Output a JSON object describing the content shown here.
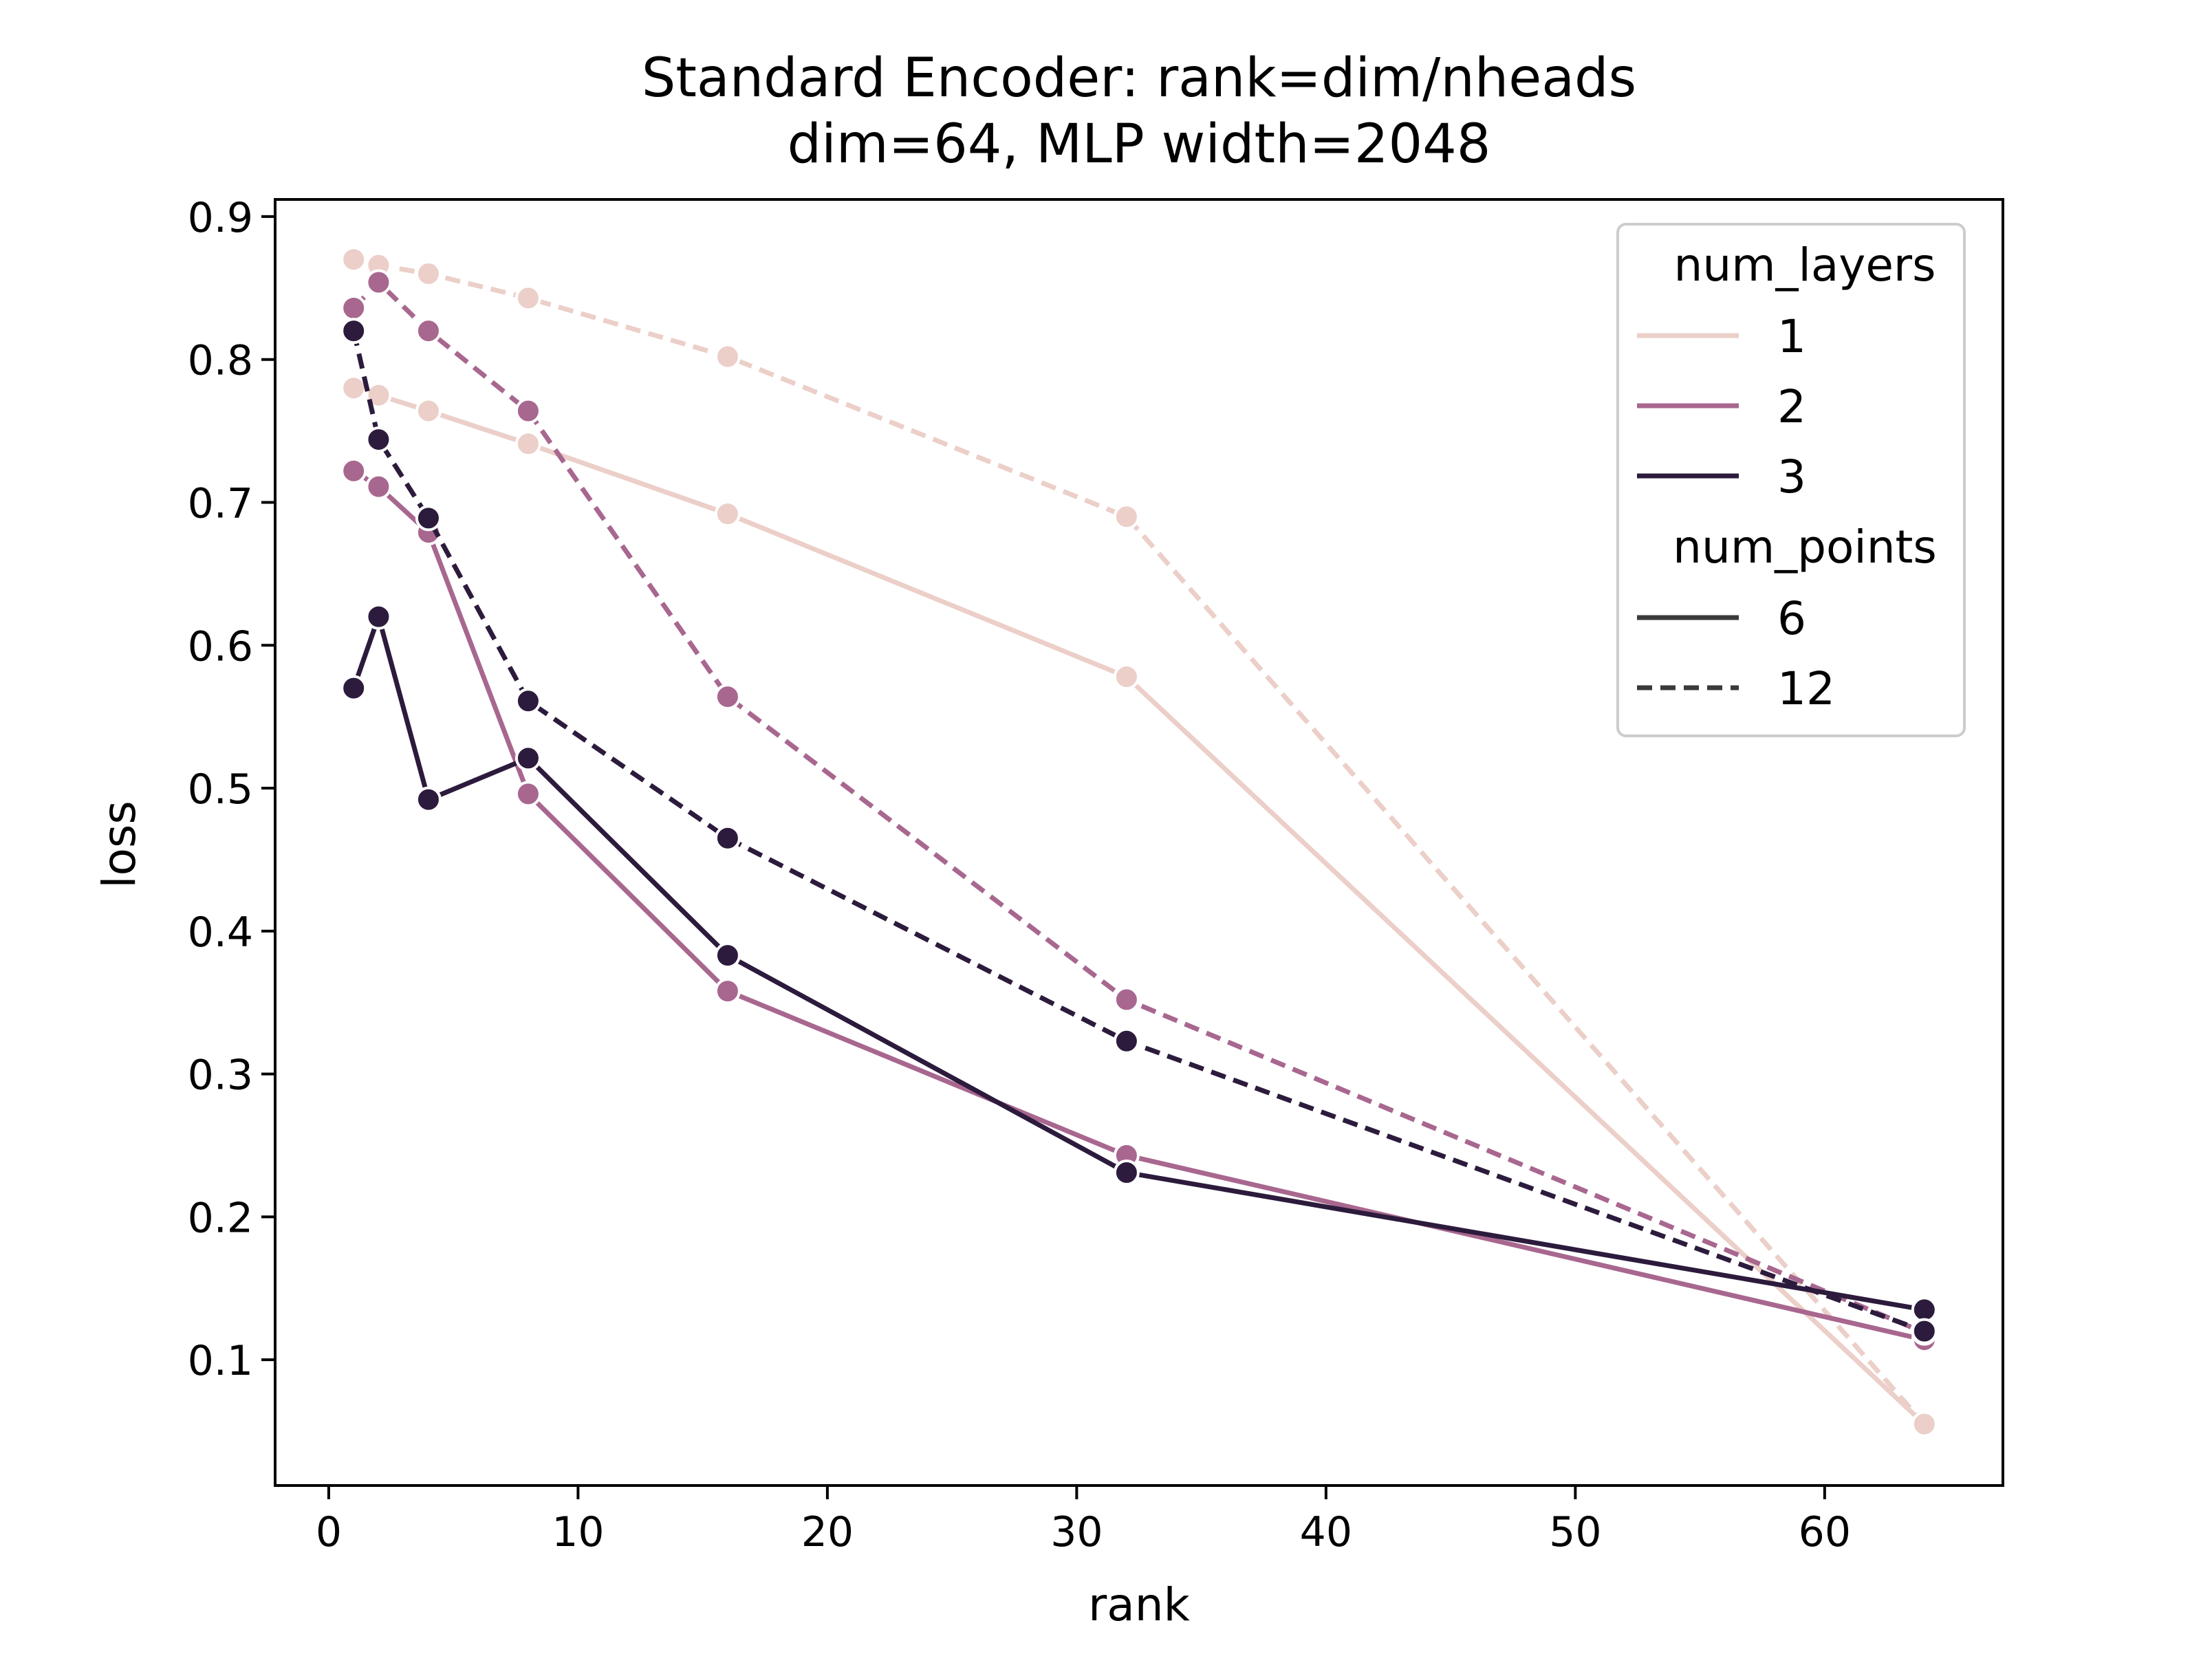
{
  "chart_data": {
    "type": "line",
    "title": "Standard Encoder: rank=dim/nheads",
    "subtitle": "dim=64, MLP width=2048",
    "xlabel": "rank",
    "ylabel": "loss",
    "xlim": [
      -2.15,
      67.15
    ],
    "ylim": [
      0.012,
      0.912
    ],
    "xticks": [
      0,
      10,
      20,
      30,
      40,
      50,
      60
    ],
    "yticks": [
      0.1,
      0.2,
      0.3,
      0.4,
      0.5,
      0.6,
      0.7,
      0.8,
      0.9
    ],
    "grid": false,
    "legend": {
      "placement": "top-right",
      "hue_title": "num_layers",
      "hue_entries": [
        {
          "label": "1",
          "color": "#ebcfc8"
        },
        {
          "label": "2",
          "color": "#a8678f"
        },
        {
          "label": "3",
          "color": "#2c1b3c"
        }
      ],
      "style_title": "num_points",
      "style_entries": [
        {
          "label": "6",
          "dash": "solid"
        },
        {
          "label": "12",
          "dash": "dashed"
        }
      ]
    },
    "x": [
      1,
      2,
      4,
      8,
      16,
      32,
      64
    ],
    "series": [
      {
        "num_layers": "1",
        "num_points": "6",
        "color": "#ebcfc8",
        "dash": "solid",
        "values": [
          0.78,
          0.775,
          0.764,
          0.741,
          0.692,
          0.578,
          0.055
        ]
      },
      {
        "num_layers": "1",
        "num_points": "12",
        "color": "#ebcfc8",
        "dash": "dashed",
        "values": [
          0.87,
          0.866,
          0.86,
          0.843,
          0.802,
          0.69,
          0.055
        ]
      },
      {
        "num_layers": "2",
        "num_points": "6",
        "color": "#a8678f",
        "dash": "solid",
        "values": [
          0.722,
          0.711,
          0.679,
          0.496,
          0.358,
          0.243,
          0.114
        ]
      },
      {
        "num_layers": "2",
        "num_points": "12",
        "color": "#a8678f",
        "dash": "dashed",
        "values": [
          0.836,
          0.854,
          0.82,
          0.764,
          0.564,
          0.352,
          0.119
        ]
      },
      {
        "num_layers": "3",
        "num_points": "6",
        "color": "#2c1b3c",
        "dash": "solid",
        "values": [
          0.57,
          0.62,
          0.492,
          0.521,
          0.383,
          0.231,
          0.135
        ]
      },
      {
        "num_layers": "3",
        "num_points": "12",
        "color": "#2c1b3c",
        "dash": "dashed",
        "values": [
          0.82,
          0.744,
          0.689,
          0.561,
          0.465,
          0.323,
          0.12
        ]
      }
    ]
  }
}
